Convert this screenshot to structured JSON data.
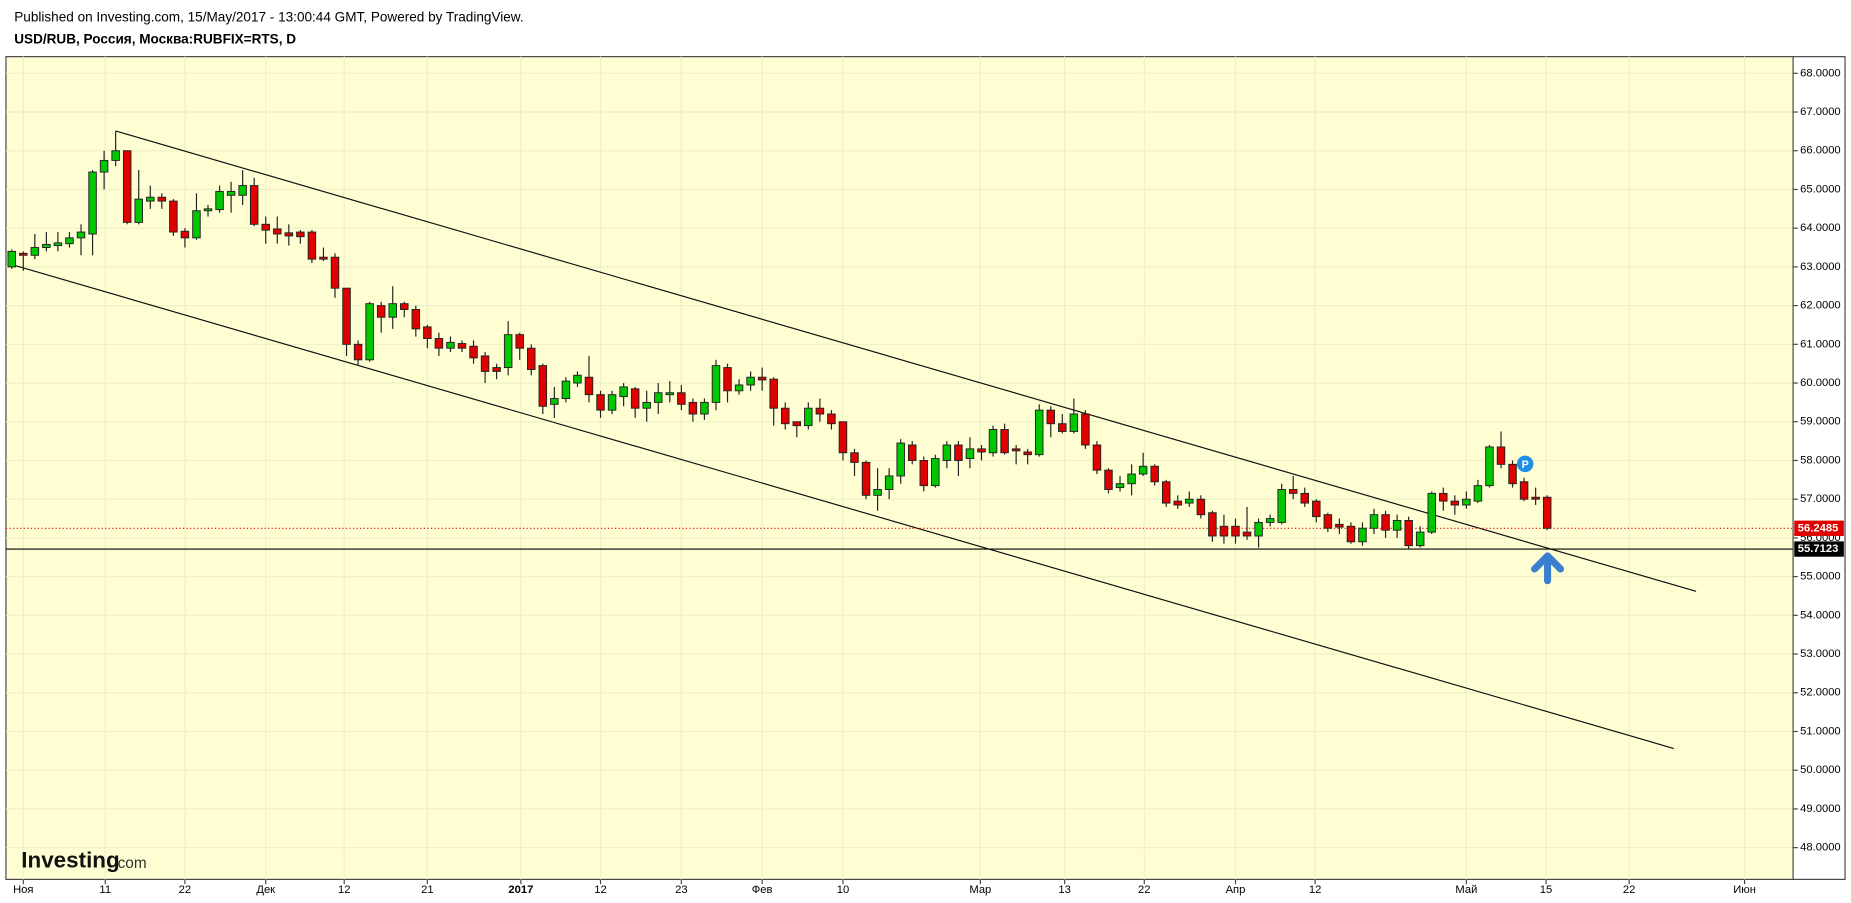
{
  "chart_data": {
    "type": "candlestick",
    "published": "Published on Investing.com, 15/May/2017 - 13:00:44 GMT, Powered by TradingView.",
    "title": "USD/RUB, Россия, Москва:RUBFIX=RTS, D",
    "logo": "Investing",
    "logo_suffix": ".com",
    "marker_label": "P",
    "up_color": "#00c800",
    "down_color": "#e00000",
    "background": "#fefed2",
    "grid": true,
    "xlim": [
      -0.5,
      154.3
    ],
    "xticks": [
      {
        "value": 1.0,
        "label": "Ноя"
      },
      {
        "value": 8.1,
        "label": "11"
      },
      {
        "value": 15.0,
        "label": "22"
      },
      {
        "value": 22.0,
        "label": "Дек"
      },
      {
        "value": 28.8,
        "label": "12"
      },
      {
        "value": 36.0,
        "label": "21"
      },
      {
        "value": 44.1,
        "label": "2017"
      },
      {
        "value": 51.0,
        "label": "12"
      },
      {
        "value": 58.0,
        "label": "23"
      },
      {
        "value": 65.0,
        "label": "Фев"
      },
      {
        "value": 72.0,
        "label": "10"
      },
      {
        "value": 83.9,
        "label": "Мар"
      },
      {
        "value": 91.2,
        "label": "13"
      },
      {
        "value": 98.1,
        "label": "22"
      },
      {
        "value": 106.0,
        "label": "Апр"
      },
      {
        "value": 112.9,
        "label": "12"
      },
      {
        "value": 126.0,
        "label": "Май"
      },
      {
        "value": 132.9,
        "label": "15"
      },
      {
        "value": 140.1,
        "label": "22"
      },
      {
        "value": 150.1,
        "label": "Июн"
      }
    ],
    "ylim": [
      47.18,
      68.43
    ],
    "yticks": [
      {
        "value": 48,
        "label": "48.0000"
      },
      {
        "value": 49,
        "label": "49.0000"
      },
      {
        "value": 50,
        "label": "50.0000"
      },
      {
        "value": 51,
        "label": "51.0000"
      },
      {
        "value": 52,
        "label": "52.0000"
      },
      {
        "value": 53,
        "label": "53.0000"
      },
      {
        "value": 54,
        "label": "54.0000"
      },
      {
        "value": 55,
        "label": "55.0000"
      },
      {
        "value": 56,
        "label": "56.0000"
      },
      {
        "value": 57,
        "label": "57.0000"
      },
      {
        "value": 58,
        "label": "58.0000"
      },
      {
        "value": 59,
        "label": "59.0000"
      },
      {
        "value": 60,
        "label": "60.0000"
      },
      {
        "value": 61,
        "label": "61.0000"
      },
      {
        "value": 62,
        "label": "62.0000"
      },
      {
        "value": 63,
        "label": "63.0000"
      },
      {
        "value": 64,
        "label": "64.0000"
      },
      {
        "value": 65,
        "label": "65.0000"
      },
      {
        "value": 66,
        "label": "66.0000"
      },
      {
        "value": 67,
        "label": "67.0000"
      },
      {
        "value": 68,
        "label": "68.0000"
      }
    ],
    "last_price": 56.2485,
    "level_price": 55.7123,
    "trendlines": [
      {
        "x": [
          9.0,
          145.9
        ],
        "y": [
          66.51,
          54.62
        ]
      },
      {
        "x": [
          0,
          143.97
        ],
        "y": [
          63.06,
          50.56
        ]
      }
    ],
    "ohlc": [
      [
        63.0,
        63.45,
        62.95,
        63.4
      ],
      [
        63.35,
        63.4,
        62.9,
        63.3
      ],
      [
        63.3,
        63.85,
        63.2,
        63.5
      ],
      [
        63.5,
        63.9,
        63.4,
        63.58
      ],
      [
        63.55,
        63.9,
        63.4,
        63.62
      ],
      [
        63.6,
        63.9,
        63.5,
        63.75
      ],
      [
        63.75,
        64.1,
        63.3,
        63.9
      ],
      [
        63.85,
        65.5,
        63.3,
        65.45
      ],
      [
        65.45,
        66.0,
        65.0,
        65.75
      ],
      [
        65.75,
        66.5,
        65.6,
        66.0
      ],
      [
        66.0,
        66.0,
        64.1,
        64.15
      ],
      [
        64.15,
        65.5,
        64.1,
        64.75
      ],
      [
        64.7,
        65.1,
        64.5,
        64.8
      ],
      [
        64.8,
        64.9,
        64.5,
        64.7
      ],
      [
        64.7,
        64.75,
        63.8,
        63.9
      ],
      [
        63.92,
        64.0,
        63.5,
        63.75
      ],
      [
        63.75,
        64.9,
        63.7,
        64.45
      ],
      [
        64.45,
        64.6,
        64.3,
        64.5
      ],
      [
        64.48,
        65.1,
        64.4,
        64.95
      ],
      [
        64.85,
        65.2,
        64.4,
        64.95
      ],
      [
        64.85,
        65.5,
        64.6,
        65.1
      ],
      [
        65.1,
        65.3,
        64.05,
        64.1
      ],
      [
        64.1,
        64.3,
        63.6,
        63.95
      ],
      [
        63.98,
        64.3,
        63.6,
        63.85
      ],
      [
        63.88,
        64.1,
        63.55,
        63.8
      ],
      [
        63.9,
        63.95,
        63.6,
        63.78
      ],
      [
        63.9,
        63.95,
        63.1,
        63.2
      ],
      [
        63.25,
        63.5,
        63.15,
        63.2
      ],
      [
        63.25,
        63.35,
        62.2,
        62.45
      ],
      [
        62.45,
        62.45,
        60.7,
        61.0
      ],
      [
        61.0,
        61.1,
        60.45,
        60.6
      ],
      [
        60.6,
        62.1,
        60.55,
        62.05
      ],
      [
        62.0,
        62.1,
        61.3,
        61.7
      ],
      [
        61.7,
        62.5,
        61.4,
        62.05
      ],
      [
        62.05,
        62.1,
        61.7,
        61.9
      ],
      [
        61.9,
        62.0,
        61.2,
        61.4
      ],
      [
        61.45,
        61.5,
        60.9,
        61.15
      ],
      [
        61.15,
        61.3,
        60.7,
        60.9
      ],
      [
        60.9,
        61.2,
        60.8,
        61.05
      ],
      [
        61.02,
        61.1,
        60.8,
        60.9
      ],
      [
        60.95,
        61.1,
        60.5,
        60.65
      ],
      [
        60.7,
        60.8,
        60.0,
        60.3
      ],
      [
        60.4,
        60.5,
        60.1,
        60.3
      ],
      [
        60.4,
        61.6,
        60.2,
        61.25
      ],
      [
        61.25,
        61.3,
        60.6,
        60.9
      ],
      [
        60.9,
        61.0,
        60.2,
        60.35
      ],
      [
        60.45,
        60.5,
        59.2,
        59.4
      ],
      [
        59.45,
        59.9,
        59.1,
        59.6
      ],
      [
        59.6,
        60.15,
        59.5,
        60.05
      ],
      [
        60.0,
        60.3,
        59.9,
        60.2
      ],
      [
        60.15,
        60.7,
        59.5,
        59.7
      ],
      [
        59.7,
        59.8,
        59.1,
        59.3
      ],
      [
        59.3,
        59.8,
        59.2,
        59.7
      ],
      [
        59.65,
        60.0,
        59.4,
        59.9
      ],
      [
        59.85,
        59.9,
        59.1,
        59.35
      ],
      [
        59.35,
        59.8,
        59.0,
        59.5
      ],
      [
        59.5,
        60.0,
        59.2,
        59.75
      ],
      [
        59.7,
        60.05,
        59.5,
        59.75
      ],
      [
        59.75,
        59.95,
        59.3,
        59.45
      ],
      [
        59.5,
        59.6,
        59.0,
        59.2
      ],
      [
        59.2,
        59.6,
        59.05,
        59.5
      ],
      [
        59.5,
        60.6,
        59.3,
        60.45
      ],
      [
        60.4,
        60.5,
        59.5,
        59.8
      ],
      [
        59.8,
        60.1,
        59.7,
        59.95
      ],
      [
        59.95,
        60.3,
        59.8,
        60.15
      ],
      [
        60.15,
        60.4,
        59.8,
        60.08
      ],
      [
        60.1,
        60.15,
        58.9,
        59.35
      ],
      [
        59.35,
        59.5,
        58.8,
        58.95
      ],
      [
        59.0,
        59.0,
        58.6,
        58.9
      ],
      [
        58.9,
        59.5,
        58.8,
        59.35
      ],
      [
        59.35,
        59.6,
        59.0,
        59.2
      ],
      [
        59.2,
        59.3,
        58.8,
        58.95
      ],
      [
        59.0,
        59.0,
        58.0,
        58.2
      ],
      [
        58.2,
        58.3,
        57.6,
        57.95
      ],
      [
        57.95,
        58.0,
        57.0,
        57.1
      ],
      [
        57.1,
        57.8,
        56.7,
        57.25
      ],
      [
        57.25,
        57.8,
        57.0,
        57.6
      ],
      [
        57.6,
        58.55,
        57.4,
        58.45
      ],
      [
        58.4,
        58.5,
        57.9,
        58.0
      ],
      [
        58.0,
        58.1,
        57.2,
        57.35
      ],
      [
        57.35,
        58.15,
        57.3,
        58.05
      ],
      [
        58.0,
        58.5,
        57.8,
        58.4
      ],
      [
        58.4,
        58.5,
        57.6,
        58.0
      ],
      [
        58.05,
        58.6,
        57.8,
        58.3
      ],
      [
        58.3,
        58.4,
        58.0,
        58.22
      ],
      [
        58.2,
        58.9,
        58.1,
        58.8
      ],
      [
        58.8,
        58.95,
        58.15,
        58.2
      ],
      [
        58.3,
        58.4,
        57.9,
        58.25
      ],
      [
        58.22,
        58.3,
        57.9,
        58.15
      ],
      [
        58.15,
        59.45,
        58.1,
        59.3
      ],
      [
        59.3,
        59.4,
        58.6,
        58.95
      ],
      [
        58.95,
        59.2,
        58.7,
        58.75
      ],
      [
        58.75,
        59.6,
        58.7,
        59.2
      ],
      [
        59.2,
        59.3,
        58.3,
        58.4
      ],
      [
        58.4,
        58.5,
        57.65,
        57.75
      ],
      [
        57.75,
        57.8,
        57.15,
        57.25
      ],
      [
        57.3,
        57.6,
        57.2,
        57.4
      ],
      [
        57.4,
        57.9,
        57.1,
        57.65
      ],
      [
        57.65,
        58.2,
        57.6,
        57.85
      ],
      [
        57.85,
        57.9,
        57.35,
        57.45
      ],
      [
        57.45,
        57.5,
        56.8,
        56.9
      ],
      [
        56.95,
        57.1,
        56.75,
        56.85
      ],
      [
        56.9,
        57.2,
        56.8,
        57.0
      ],
      [
        57.0,
        57.1,
        56.5,
        56.6
      ],
      [
        56.65,
        56.7,
        55.9,
        56.05
      ],
      [
        56.3,
        56.6,
        55.85,
        56.05
      ],
      [
        56.3,
        56.5,
        55.85,
        56.05
      ],
      [
        56.15,
        56.8,
        55.95,
        56.05
      ],
      [
        56.05,
        56.5,
        55.75,
        56.4
      ],
      [
        56.4,
        56.6,
        56.3,
        56.5
      ],
      [
        56.4,
        57.4,
        56.35,
        57.25
      ],
      [
        57.25,
        57.6,
        57.0,
        57.15
      ],
      [
        57.15,
        57.3,
        56.8,
        56.9
      ],
      [
        56.95,
        57.0,
        56.4,
        56.55
      ],
      [
        56.6,
        56.65,
        56.15,
        56.25
      ],
      [
        56.35,
        56.5,
        56.1,
        56.28
      ],
      [
        56.3,
        56.4,
        55.85,
        55.9
      ],
      [
        55.9,
        56.4,
        55.8,
        56.25
      ],
      [
        56.25,
        56.75,
        56.1,
        56.6
      ],
      [
        56.6,
        56.7,
        56.0,
        56.2
      ],
      [
        56.2,
        56.6,
        56.0,
        56.45
      ],
      [
        56.45,
        56.55,
        55.7,
        55.8
      ],
      [
        55.8,
        56.3,
        55.75,
        56.15
      ],
      [
        56.15,
        57.2,
        56.1,
        57.15
      ],
      [
        57.15,
        57.3,
        56.7,
        56.95
      ],
      [
        56.95,
        57.1,
        56.6,
        56.85
      ],
      [
        56.85,
        57.2,
        56.75,
        57.0
      ],
      [
        56.95,
        57.5,
        56.9,
        57.35
      ],
      [
        57.35,
        58.4,
        57.3,
        58.35
      ],
      [
        58.35,
        58.75,
        57.8,
        57.9
      ],
      [
        57.9,
        58.0,
        57.3,
        57.4
      ],
      [
        57.45,
        57.55,
        56.95,
        57.0
      ],
      [
        57.05,
        57.3,
        56.85,
        57.0
      ],
      [
        57.05,
        57.1,
        56.2,
        56.2485
      ]
    ]
  }
}
